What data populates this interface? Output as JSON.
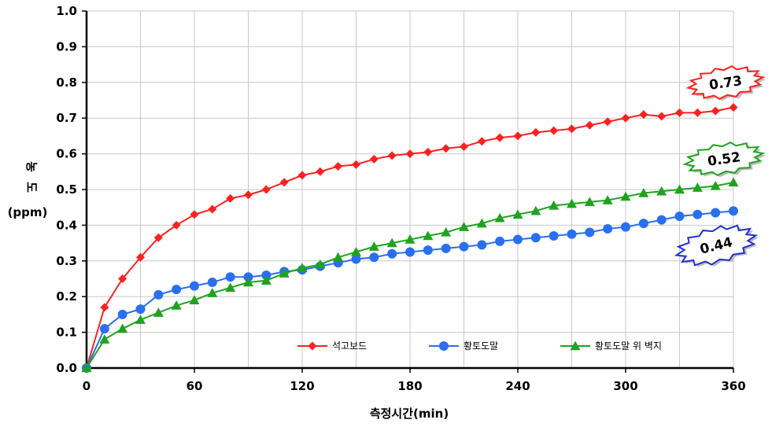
{
  "chart_data": {
    "type": "line",
    "xlabel": "측정시간(min)",
    "ylabel_lines": [
      "농",
      "도",
      "(ppm)"
    ],
    "x_ticks": [
      0,
      60,
      120,
      180,
      240,
      300,
      360
    ],
    "y_ticks": [
      "0.0",
      "0.1",
      "0.2",
      "0.3",
      "0.4",
      "0.5",
      "0.6",
      "0.7",
      "0.8",
      "0.9",
      "1.0"
    ],
    "xlim": [
      0,
      360
    ],
    "ylim": [
      0,
      1.0
    ],
    "x_grid_step": 30,
    "grid": true,
    "legend_position": "bottom-inside",
    "series": [
      {
        "name": "석고보드",
        "color": "#ff2020",
        "marker": "diamond",
        "x": [
          0,
          10,
          20,
          30,
          40,
          50,
          60,
          70,
          80,
          90,
          100,
          110,
          120,
          130,
          140,
          150,
          160,
          170,
          180,
          190,
          200,
          210,
          220,
          230,
          240,
          250,
          260,
          270,
          280,
          290,
          300,
          310,
          320,
          330,
          340,
          350,
          360
        ],
        "values": [
          0.0,
          0.17,
          0.25,
          0.31,
          0.365,
          0.4,
          0.43,
          0.445,
          0.475,
          0.485,
          0.5,
          0.52,
          0.54,
          0.55,
          0.565,
          0.57,
          0.585,
          0.595,
          0.6,
          0.605,
          0.615,
          0.62,
          0.635,
          0.645,
          0.65,
          0.66,
          0.665,
          0.67,
          0.68,
          0.69,
          0.7,
          0.71,
          0.705,
          0.715,
          0.715,
          0.72,
          0.73
        ]
      },
      {
        "name": "황토도말",
        "color": "#2a6ff0",
        "marker": "circle",
        "x": [
          0,
          10,
          20,
          30,
          40,
          50,
          60,
          70,
          80,
          90,
          100,
          110,
          120,
          130,
          140,
          150,
          160,
          170,
          180,
          190,
          200,
          210,
          220,
          230,
          240,
          250,
          260,
          270,
          280,
          290,
          300,
          310,
          320,
          330,
          340,
          350,
          360
        ],
        "values": [
          0.0,
          0.11,
          0.15,
          0.165,
          0.205,
          0.22,
          0.23,
          0.24,
          0.255,
          0.255,
          0.26,
          0.27,
          0.275,
          0.285,
          0.295,
          0.305,
          0.31,
          0.32,
          0.325,
          0.33,
          0.335,
          0.34,
          0.345,
          0.355,
          0.36,
          0.365,
          0.37,
          0.375,
          0.38,
          0.39,
          0.395,
          0.405,
          0.415,
          0.425,
          0.43,
          0.435,
          0.44
        ]
      },
      {
        "name": "황토도말 위 벽지",
        "color": "#1fa31f",
        "marker": "triangle",
        "x": [
          0,
          10,
          20,
          30,
          40,
          50,
          60,
          70,
          80,
          90,
          100,
          110,
          120,
          130,
          140,
          150,
          160,
          170,
          180,
          190,
          200,
          210,
          220,
          230,
          240,
          250,
          260,
          270,
          280,
          290,
          300,
          310,
          320,
          330,
          340,
          350,
          360
        ],
        "values": [
          0.0,
          0.08,
          0.11,
          0.135,
          0.155,
          0.175,
          0.19,
          0.21,
          0.225,
          0.24,
          0.245,
          0.265,
          0.28,
          0.29,
          0.31,
          0.325,
          0.34,
          0.35,
          0.36,
          0.37,
          0.38,
          0.395,
          0.405,
          0.42,
          0.43,
          0.44,
          0.455,
          0.46,
          0.465,
          0.47,
          0.48,
          0.49,
          0.495,
          0.5,
          0.505,
          0.51,
          0.52
        ]
      }
    ],
    "callouts": [
      {
        "text": "0.73",
        "series": 0,
        "color": "#ff2020"
      },
      {
        "text": "0.52",
        "series": 2,
        "color": "#1fa31f"
      },
      {
        "text": "0.44",
        "series": 1,
        "color": "#2030d0"
      }
    ]
  }
}
